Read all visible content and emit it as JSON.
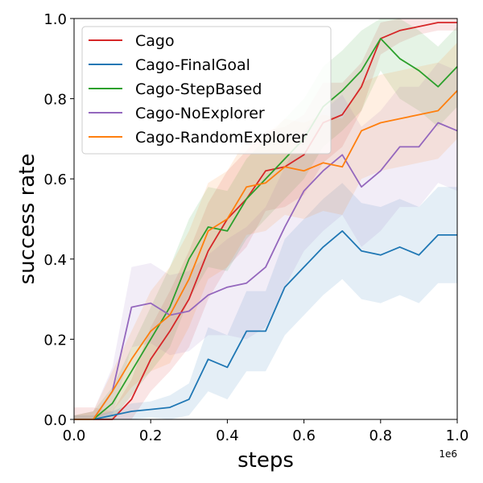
{
  "chart_data": {
    "type": "line",
    "xlabel": "steps",
    "ylabel": "success rate",
    "x_offset_label": "1e6",
    "xlim": [
      0,
      1.0
    ],
    "ylim": [
      0,
      1.0
    ],
    "x_ticks": [
      0.0,
      0.2,
      0.4,
      0.6,
      0.8,
      1.0
    ],
    "x_tick_labels": [
      "0.0",
      "0.2",
      "0.4",
      "0.6",
      "0.8",
      "1.0"
    ],
    "y_ticks": [
      0.0,
      0.2,
      0.4,
      0.6,
      0.8,
      1.0
    ],
    "y_tick_labels": [
      "0.0",
      "0.2",
      "0.4",
      "0.6",
      "0.8",
      "1.0"
    ],
    "legend_position": "top-left",
    "x": [
      0.0,
      0.05,
      0.1,
      0.15,
      0.2,
      0.25,
      0.3,
      0.35,
      0.4,
      0.45,
      0.5,
      0.55,
      0.6,
      0.65,
      0.7,
      0.75,
      0.8,
      0.85,
      0.9,
      0.95,
      1.0
    ],
    "series": [
      {
        "name": "Cago",
        "color": "#d62728",
        "values": [
          0.0,
          0.0,
          0.0,
          0.05,
          0.15,
          0.22,
          0.3,
          0.42,
          0.5,
          0.55,
          0.62,
          0.63,
          0.66,
          0.74,
          0.76,
          0.83,
          0.95,
          0.97,
          0.98,
          0.99,
          0.99
        ],
        "band": [
          0.03,
          0.03,
          0.02,
          0.05,
          0.08,
          0.1,
          0.12,
          0.12,
          0.12,
          0.12,
          0.1,
          0.1,
          0.1,
          0.1,
          0.08,
          0.06,
          0.04,
          0.03,
          0.02,
          0.02,
          0.02
        ]
      },
      {
        "name": "Cago-FinalGoal",
        "color": "#1f77b4",
        "values": [
          0.0,
          0.0,
          0.01,
          0.02,
          0.025,
          0.03,
          0.05,
          0.15,
          0.13,
          0.22,
          0.22,
          0.33,
          0.38,
          0.43,
          0.47,
          0.42,
          0.41,
          0.43,
          0.41,
          0.46,
          0.46
        ],
        "band": [
          0.01,
          0.01,
          0.01,
          0.02,
          0.02,
          0.03,
          0.04,
          0.08,
          0.08,
          0.1,
          0.1,
          0.12,
          0.12,
          0.12,
          0.12,
          0.12,
          0.12,
          0.12,
          0.12,
          0.12,
          0.12
        ]
      },
      {
        "name": "Cago-StepBased",
        "color": "#2ca02c",
        "values": [
          0.0,
          0.0,
          0.04,
          0.12,
          0.2,
          0.28,
          0.4,
          0.48,
          0.47,
          0.55,
          0.6,
          0.65,
          0.7,
          0.78,
          0.82,
          0.87,
          0.95,
          0.9,
          0.87,
          0.83,
          0.88
        ],
        "band": [
          0.01,
          0.02,
          0.04,
          0.06,
          0.08,
          0.1,
          0.1,
          0.1,
          0.1,
          0.1,
          0.1,
          0.1,
          0.1,
          0.1,
          0.1,
          0.1,
          0.08,
          0.1,
          0.1,
          0.1,
          0.1
        ]
      },
      {
        "name": "Cago-NoExplorer",
        "color": "#9467bd",
        "values": [
          0.0,
          0.0,
          0.07,
          0.28,
          0.29,
          0.26,
          0.27,
          0.31,
          0.33,
          0.34,
          0.38,
          0.48,
          0.57,
          0.62,
          0.66,
          0.58,
          0.62,
          0.68,
          0.68,
          0.74,
          0.72
        ],
        "band": [
          0.01,
          0.02,
          0.06,
          0.1,
          0.1,
          0.1,
          0.1,
          0.1,
          0.12,
          0.14,
          0.15,
          0.15,
          0.15,
          0.15,
          0.15,
          0.15,
          0.15,
          0.15,
          0.15,
          0.15,
          0.15
        ]
      },
      {
        "name": "Cago-RandomExplorer",
        "color": "#ff7f0e",
        "values": [
          0.0,
          0.0,
          0.07,
          0.15,
          0.22,
          0.26,
          0.35,
          0.47,
          0.5,
          0.58,
          0.59,
          0.63,
          0.62,
          0.64,
          0.63,
          0.72,
          0.74,
          0.75,
          0.76,
          0.77,
          0.82
        ],
        "band": [
          0.01,
          0.02,
          0.05,
          0.07,
          0.1,
          0.12,
          0.12,
          0.12,
          0.12,
          0.12,
          0.12,
          0.12,
          0.12,
          0.12,
          0.12,
          0.12,
          0.12,
          0.12,
          0.12,
          0.12,
          0.12
        ]
      }
    ]
  }
}
